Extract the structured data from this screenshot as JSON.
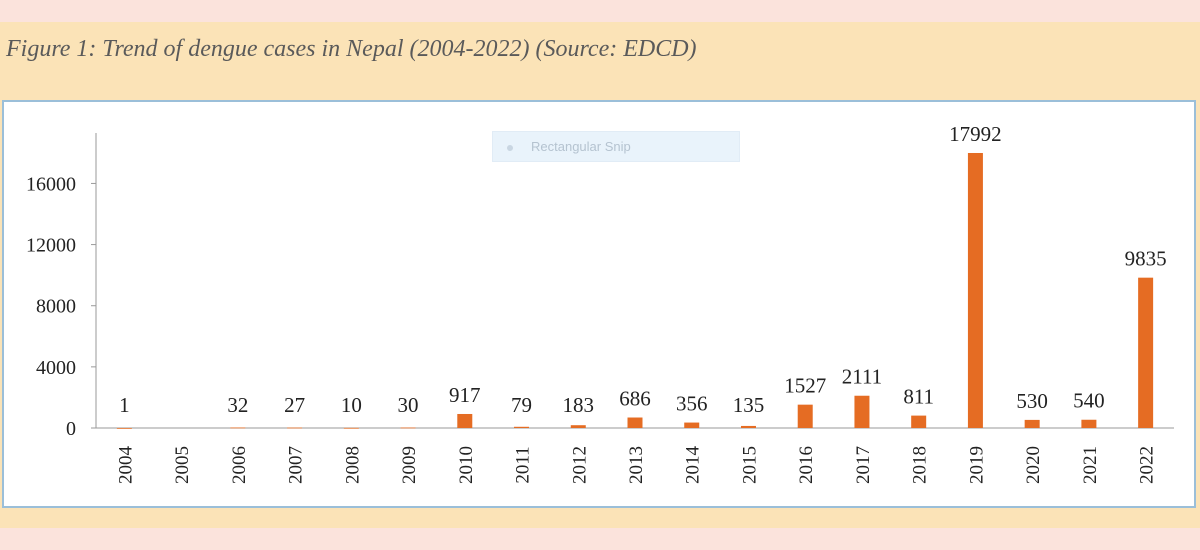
{
  "caption": "Figure 1: Trend of dengue cases in Nepal (2004-2022) (Source: EDCD)",
  "overlay": {
    "label": "Rectangular Snip"
  },
  "colors": {
    "bar": "#e56c23",
    "panel": "#fbe3b7",
    "background": "#fbe3dc",
    "frame_border": "#9bbfd9"
  },
  "chart_data": {
    "type": "bar",
    "title": "",
    "xlabel": "",
    "ylabel": "",
    "categories": [
      "2004",
      "2005",
      "2006",
      "2007",
      "2008",
      "2009",
      "2010",
      "2011",
      "2012",
      "2013",
      "2014",
      "2015",
      "2016",
      "2017",
      "2018",
      "2019",
      "2020",
      "2021",
      "2022"
    ],
    "values": [
      1,
      null,
      32,
      27,
      10,
      30,
      917,
      79,
      183,
      686,
      356,
      135,
      1527,
      2111,
      811,
      17992,
      530,
      540,
      9835
    ],
    "data_labels": [
      "1",
      "",
      "32",
      "27",
      "10",
      "30",
      "917",
      "79",
      "183",
      "686",
      "356",
      "135",
      "1527",
      "2111",
      "811",
      "17992",
      "530",
      "540",
      "9835"
    ],
    "yticks": [
      0,
      4000,
      8000,
      12000,
      16000
    ],
    "ylim": [
      0,
      19300
    ],
    "grid": false,
    "legend": "none"
  }
}
